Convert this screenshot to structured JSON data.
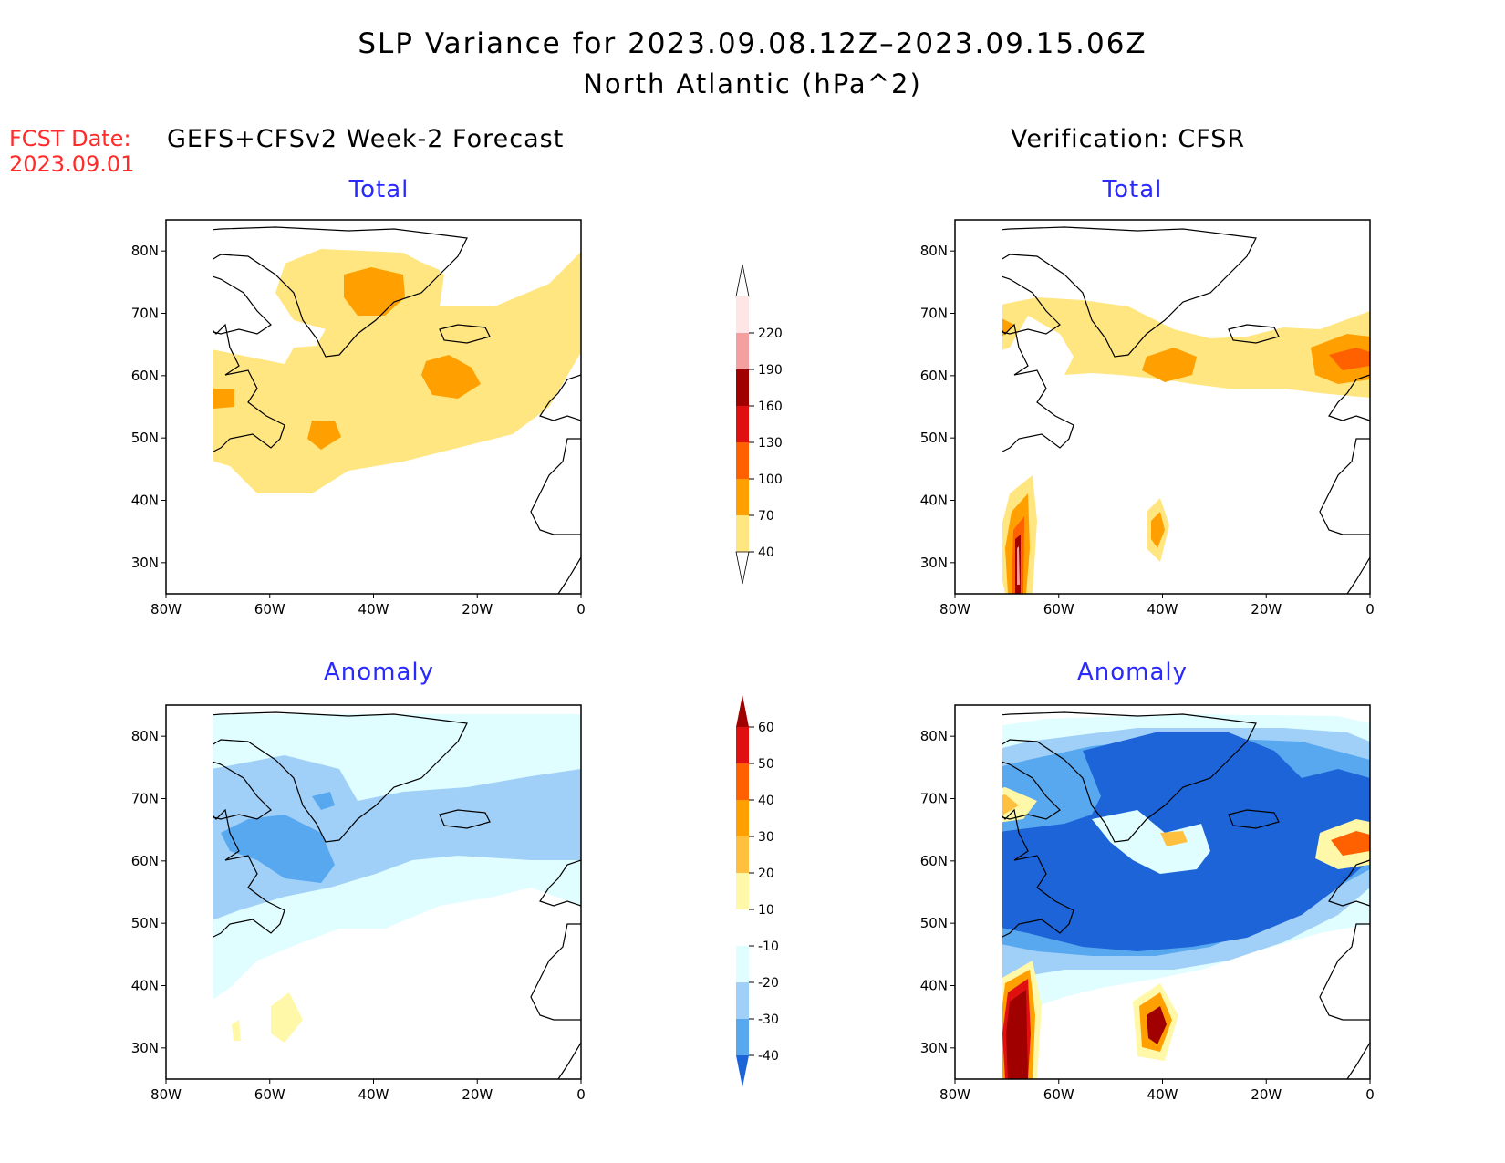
{
  "title": {
    "line1": "SLP Variance for 2023.09.08.12Z–2023.09.15.06Z",
    "line2": "North Atlantic (hPa^2)"
  },
  "forecast_date": {
    "label": "FCST Date:",
    "value": "2023.09.01"
  },
  "columns": {
    "left": "GEFS+CFSv2 Week-2 Forecast",
    "right": "Verification: CFSR"
  },
  "panels": {
    "fcst_total": {
      "title": "Total"
    },
    "verif_total": {
      "title": "Total"
    },
    "fcst_anomaly": {
      "title": "Anomaly"
    },
    "verif_anomaly": {
      "title": "Anomaly"
    }
  },
  "axes": {
    "lon_ticks": [
      "80W",
      "60W",
      "40W",
      "20W",
      "0"
    ],
    "lat_ticks": [
      "80N",
      "70N",
      "60N",
      "50N",
      "40N",
      "30N"
    ],
    "lon_range": [
      -80,
      0
    ],
    "lat_range": [
      25,
      85
    ]
  },
  "colorbars": {
    "total": {
      "levels": [
        "220",
        "190",
        "160",
        "130",
        "100",
        "70",
        "40"
      ],
      "colors": [
        "#ffe6e6",
        "#f4a0a0",
        "#a00000",
        "#e01010",
        "#ff6000",
        "#ffa000",
        "#ffe680"
      ]
    },
    "anomaly": {
      "levels": [
        "60",
        "50",
        "40",
        "30",
        "20",
        "10",
        "-10",
        "-20",
        "-30",
        "-40"
      ],
      "colors": [
        "#a00000",
        "#e01010",
        "#ff6000",
        "#ffa000",
        "#ffc040",
        "#fff8a8",
        "#ffffff",
        "#e0fdff",
        "#a0d0f8",
        "#58a8f0",
        "#1c64d8"
      ]
    }
  },
  "chart_data": [
    {
      "type": "heatmap",
      "title": "Total",
      "subtitle": "GEFS+CFSv2 Week-2 Forecast",
      "xlim": [
        -80,
        0
      ],
      "ylim": [
        25,
        85
      ],
      "bins": [
        "40",
        "70",
        "100",
        "130",
        "160",
        "190",
        "220"
      ],
      "regions": [
        {
          "level": "40-70",
          "area": "broad band 60N-40N from 80W to 0, extending north toward Greenland"
        },
        {
          "level": "70-100",
          "centers": [
            "40W 76N",
            "28W 62N",
            "68W 57N",
            "50W 51N"
          ]
        }
      ]
    },
    {
      "type": "heatmap",
      "title": "Total",
      "subtitle": "Verification: CFSR",
      "xlim": [
        -80,
        0
      ],
      "ylim": [
        25,
        85
      ],
      "regions": [
        {
          "level": "40-70",
          "area": "band along 60N-67N from 80W to 0"
        },
        {
          "level": "70-100",
          "centers": [
            "73W 67N",
            "33W 62N",
            "5W 63N"
          ]
        },
        {
          "level": ">130",
          "centers": [
            "67W 32N",
            "40W 33N"
          ]
        }
      ]
    },
    {
      "type": "heatmap",
      "title": "Anomaly",
      "subtitle": "GEFS+CFSv2 Week-2 Forecast",
      "xlim": [
        -80,
        0
      ],
      "ylim": [
        25,
        85
      ],
      "regions": [
        {
          "level": "-20 to -10",
          "area": "broad area 45N-85N"
        },
        {
          "level": "-30 to -20",
          "area": "65N-73N and 55N-65N"
        },
        {
          "level": "-40 to -30",
          "centers": [
            "58W 62N",
            "47W 70N"
          ]
        },
        {
          "level": "10 to 20",
          "centers": [
            "55W 32N",
            "65W 30N"
          ]
        }
      ]
    },
    {
      "type": "heatmap",
      "title": "Anomaly",
      "subtitle": "Verification: CFSR",
      "xlim": [
        -80,
        0
      ],
      "ylim": [
        25,
        85
      ],
      "regions": [
        {
          "level": "<-40",
          "area": "large area 43N-80N"
        },
        {
          "level": "10 to 60",
          "centers": [
            "72W 67N",
            "35W 63N",
            "5W 63N"
          ]
        },
        {
          "level": ">60",
          "centers": [
            "67W 33N",
            "40W 33N"
          ]
        }
      ]
    }
  ]
}
